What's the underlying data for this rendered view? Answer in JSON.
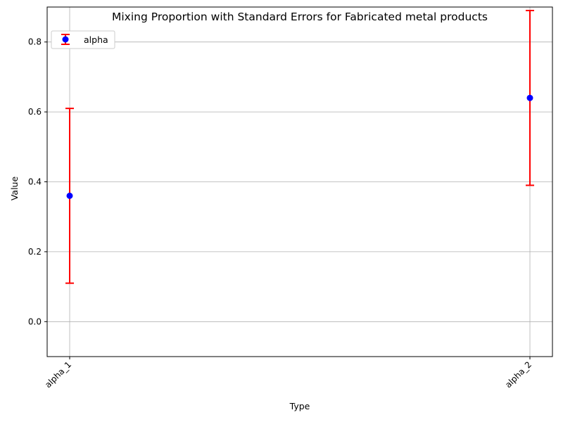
{
  "chart_data": {
    "type": "scatter",
    "title": "Mixing Proportion with Standard Errors for Fabricated metal products",
    "xlabel": "Type",
    "ylabel": "Value",
    "categories": [
      "alpha_1",
      "alpha_2"
    ],
    "series": [
      {
        "name": "alpha",
        "values": [
          0.36,
          0.64
        ],
        "error_lower": [
          0.11,
          0.39
        ],
        "error_upper": [
          0.61,
          0.89
        ]
      }
    ],
    "ylim": [
      -0.1,
      0.9
    ],
    "yticks": [
      "0.0",
      "0.2",
      "0.4",
      "0.6",
      "0.8"
    ],
    "grid": true,
    "legend_position": "top-left",
    "colors": {
      "marker": "#0000ff",
      "errorbar": "#ff0000",
      "grid": "#b0b0b0"
    }
  }
}
